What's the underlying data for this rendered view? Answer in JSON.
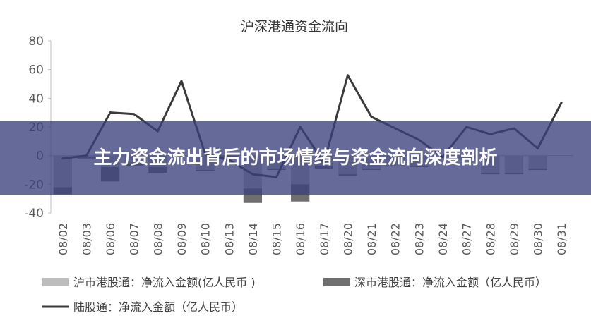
{
  "banner": {
    "headline": "主力资金流出背后的市场情绪与资金流向深度剖析"
  },
  "colors": {
    "sh_bar": "#bdbdbd",
    "sz_bar": "#6f6f6f",
    "line": "#3a3a3a",
    "overlay": "#3a407c"
  },
  "chart_data": {
    "type": "bar",
    "title": "沪深港通资金流向",
    "categories": [
      "08/02",
      "08/03",
      "08/06",
      "08/07",
      "08/08",
      "08/09",
      "08/10",
      "08/13",
      "08/14",
      "08/15",
      "08/16",
      "08/17",
      "08/20",
      "08/21",
      "08/22",
      "08/23",
      "08/24",
      "08/27",
      "08/28",
      "08/29",
      "08/30",
      "08/31"
    ],
    "ylim": [
      -40,
      80
    ],
    "yticks": [
      -40,
      -20,
      0,
      20,
      40,
      60,
      80
    ],
    "legend_position": "bottom",
    "grid": false,
    "series": [
      {
        "name": "沪市港股通：净流入金额(亿人民币 )",
        "kind": "bar",
        "values": [
          -22,
          -1,
          -8,
          -6,
          -8,
          0,
          -10,
          0,
          -23,
          -9,
          -20,
          -7,
          -13,
          -9,
          -7,
          -7,
          0,
          -2,
          -12,
          -12,
          -9,
          0
        ]
      },
      {
        "name": "深市港股通：净流入金额（亿人民币）",
        "kind": "bar",
        "values": [
          -5,
          -1,
          -10,
          -1,
          -4,
          0,
          -1,
          -1,
          -10,
          -1,
          -12,
          -2,
          -1,
          -1,
          0,
          -1,
          0,
          0,
          -1,
          -1,
          -1,
          0
        ]
      },
      {
        "name": "陆股通：净流入金额（亿人民币）",
        "kind": "line",
        "values": [
          -2,
          0,
          30,
          29,
          17,
          52,
          1,
          -3,
          -13,
          -15,
          20,
          -5,
          56,
          27,
          19,
          11,
          -1,
          20,
          15,
          19,
          5,
          37
        ]
      }
    ]
  }
}
